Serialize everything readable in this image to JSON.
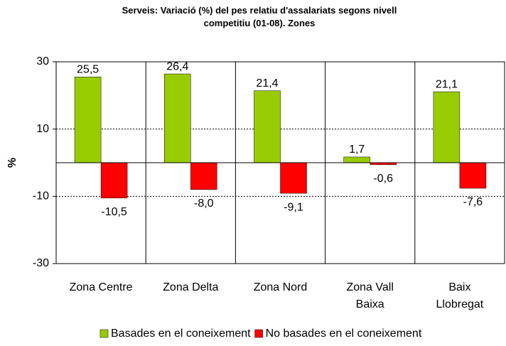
{
  "chart_data": {
    "type": "bar",
    "title": "Serveis: Variació (%) del pes relatiu d'assalariats segons nivell competitiu (01-08). Zones",
    "y_label": "%",
    "categories": [
      "Zona Centre",
      "Zona Delta",
      "Zona Nord",
      "Zona Vall Baixa",
      "Baix Llobregat"
    ],
    "series": [
      {
        "name": "Basades en el coneixement",
        "color": "#99cc00",
        "values": [
          25.5,
          26.4,
          21.4,
          1.7,
          21.1
        ],
        "value_labels": [
          "25,5",
          "26,4",
          "21,4",
          "1,7",
          "21,1"
        ]
      },
      {
        "name": "No basades en el coneixement",
        "color": "#ff0000",
        "values": [
          -10.5,
          -8.0,
          -9.1,
          -0.6,
          -7.6
        ],
        "value_labels": [
          "-10,5",
          "-8,0",
          "-9,1",
          "-0,6",
          "-7,6"
        ]
      }
    ],
    "ylim": [
      -30,
      30
    ],
    "yticks": [
      -30,
      -10,
      10,
      30
    ],
    "grid": true,
    "legend": "bottom"
  }
}
